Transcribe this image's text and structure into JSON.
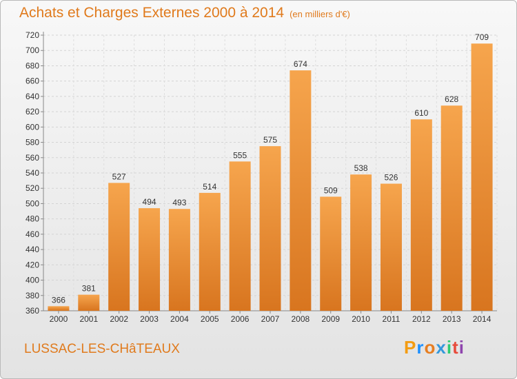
{
  "header": {
    "title": "Achats et Charges Externes 2000 à 2014",
    "unit": "(en milliers d'€)"
  },
  "commune": "LUSSAC-LES-CHâTEAUX",
  "logo": {
    "letters": [
      "P",
      "r",
      "o",
      "x",
      "i",
      "t",
      "i"
    ],
    "colors": [
      "#f39c12",
      "#1e90ff",
      "#e67e22",
      "#3498db",
      "#2ecc71",
      "#e74c3c",
      "#8e44ad"
    ]
  },
  "colors": {
    "title": "#e07a1c",
    "bar_light": "#f6a54d",
    "bar_dark": "#d8751f"
  },
  "chart_data": {
    "type": "bar",
    "title": "Achats et Charges Externes 2000 à 2014",
    "subtitle": "(en milliers d'€)",
    "categories": [
      "2000",
      "2001",
      "2002",
      "2003",
      "2004",
      "2005",
      "2006",
      "2007",
      "2008",
      "2009",
      "2010",
      "2011",
      "2012",
      "2013",
      "2014"
    ],
    "values": [
      366,
      381,
      527,
      494,
      493,
      514,
      555,
      575,
      674,
      509,
      538,
      526,
      610,
      628,
      709
    ],
    "ylim": [
      360,
      720
    ],
    "yticks": [
      360,
      380,
      400,
      420,
      440,
      460,
      480,
      500,
      520,
      540,
      560,
      580,
      600,
      620,
      640,
      660,
      680,
      700,
      720
    ],
    "grid": true,
    "xlabel": "",
    "ylabel": ""
  }
}
